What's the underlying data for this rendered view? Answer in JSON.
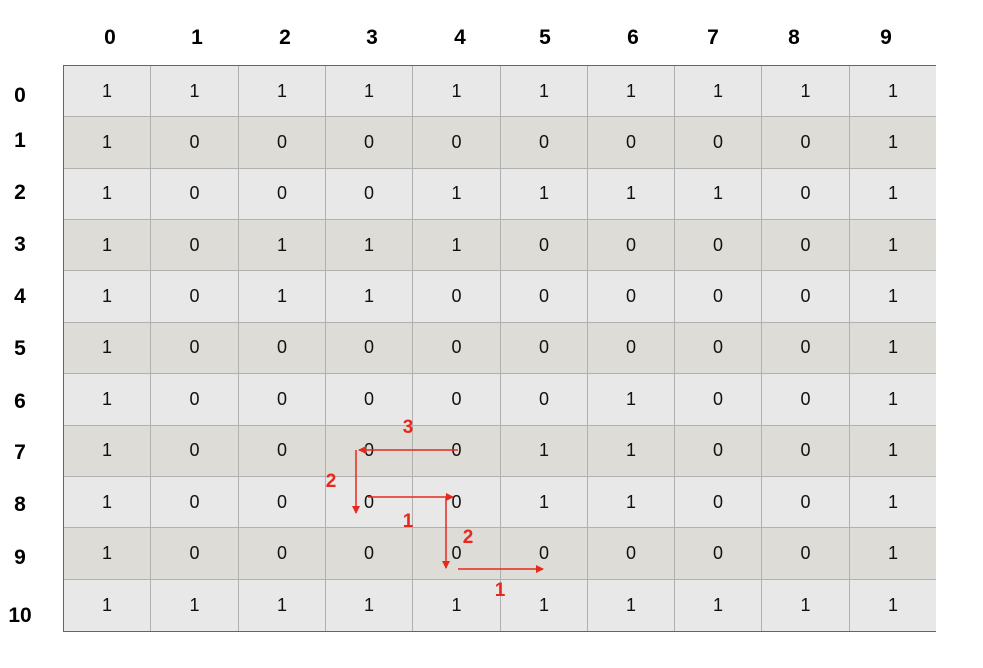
{
  "column_headers": [
    "0",
    "1",
    "2",
    "3",
    "4",
    "5",
    "6",
    "7",
    "8",
    "9"
  ],
  "row_headers": [
    "0",
    "1",
    "2",
    "3",
    "4",
    "5",
    "6",
    "7",
    "8",
    "9",
    "10"
  ],
  "grid": [
    [
      "1",
      "1",
      "1",
      "1",
      "1",
      "1",
      "1",
      "1",
      "1",
      "1"
    ],
    [
      "1",
      "0",
      "0",
      "0",
      "0",
      "0",
      "0",
      "0",
      "0",
      "1"
    ],
    [
      "1",
      "0",
      "0",
      "0",
      "1",
      "1",
      "1",
      "1",
      "0",
      "1"
    ],
    [
      "1",
      "0",
      "1",
      "1",
      "1",
      "0",
      "0",
      "0",
      "0",
      "1"
    ],
    [
      "1",
      "0",
      "1",
      "1",
      "0",
      "0",
      "0",
      "0",
      "0",
      "1"
    ],
    [
      "1",
      "0",
      "0",
      "0",
      "0",
      "0",
      "0",
      "0",
      "0",
      "1"
    ],
    [
      "1",
      "0",
      "0",
      "0",
      "0",
      "0",
      "1",
      "0",
      "0",
      "1"
    ],
    [
      "1",
      "0",
      "0",
      "0",
      "0",
      "1",
      "1",
      "0",
      "0",
      "1"
    ],
    [
      "1",
      "0",
      "0",
      "0",
      "0",
      "1",
      "1",
      "0",
      "0",
      "1"
    ],
    [
      "1",
      "0",
      "0",
      "0",
      "0",
      "0",
      "0",
      "0",
      "0",
      "1"
    ],
    [
      "1",
      "1",
      "1",
      "1",
      "1",
      "1",
      "1",
      "1",
      "1",
      "1"
    ]
  ],
  "path_step_labels": {
    "s1": "1",
    "s2": "2",
    "s3": "1",
    "s4": "2",
    "s5": "3"
  },
  "colors": {
    "path": "#e8281c",
    "row_light": "#e8e8e8",
    "row_dark": "#dddcd7",
    "grid_border": "#4a6d84"
  }
}
